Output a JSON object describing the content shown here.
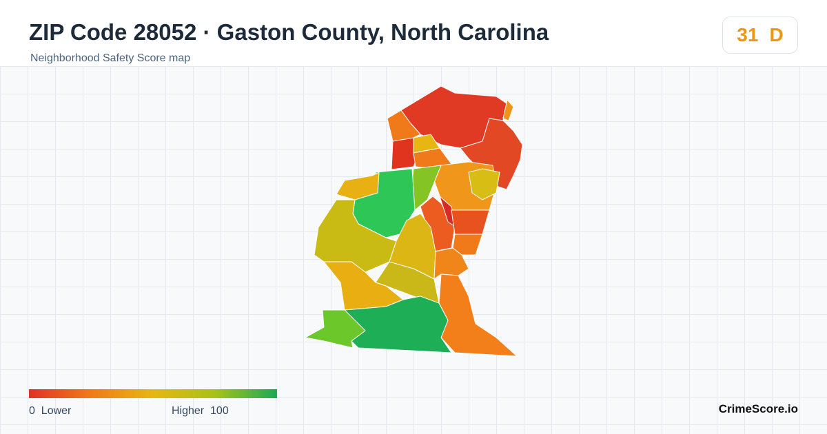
{
  "header": {
    "title": "ZIP Code 28052 · Gaston County, North Carolina",
    "subtitle": "Neighborhood Safety Score map"
  },
  "score": {
    "value": 31,
    "grade": "D"
  },
  "legend": {
    "min": 0,
    "min_label": "Lower",
    "max_label": "Higher",
    "max": 100
  },
  "brand": "CrimeScore.io"
}
